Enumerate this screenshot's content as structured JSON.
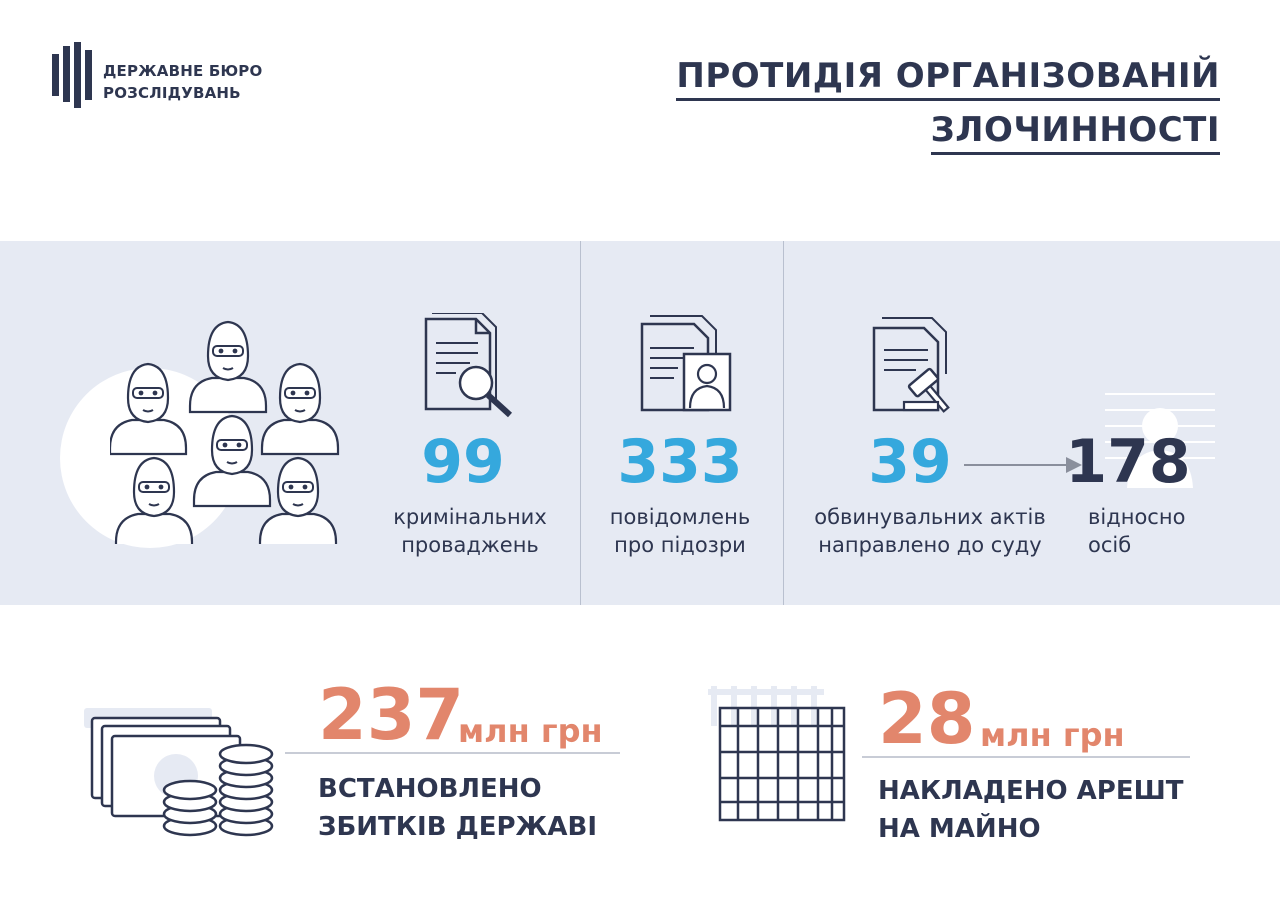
{
  "header": {
    "org_line1": "ДЕРЖАВНЕ БЮРО",
    "org_line2": "РОЗСЛІДУВАНЬ",
    "title_line1": "ПРОТИДІЯ ОРГАНІЗОВАНІЙ",
    "title_line2": "ЗЛОЧИННОСТІ"
  },
  "stats": {
    "cases": {
      "value": "99",
      "caption_line1": "кримінальних",
      "caption_line2": "проваджень"
    },
    "suspicions": {
      "value": "333",
      "caption_line1": "повідомлень",
      "caption_line2": "про підозри"
    },
    "indictments": {
      "value": "39",
      "caption_line1": "обвинувальних актів",
      "caption_line2": "направлено до суду"
    },
    "persons": {
      "value": "178",
      "caption_line1": "відносно",
      "caption_line2": "осіб"
    }
  },
  "bottom": {
    "damage": {
      "value": "237",
      "unit": "млн грн",
      "caption_line1": "ВСТАНОВЛЕНО",
      "caption_line2": "ЗБИТКІВ ДЕРЖАВІ"
    },
    "arrest": {
      "value": "28",
      "unit": "млн грн",
      "caption_line1": "НАКЛАДЕНО АРЕШТ",
      "caption_line2": "НА МАЙНО"
    }
  },
  "colors": {
    "dark": "#2e3650",
    "blue": "#35a8dd",
    "orange": "#e2866c",
    "band": "#e6eaf3"
  },
  "icons": [
    "dbr-logo-icon",
    "masked-group-icon",
    "document-search-icon",
    "suspicion-document-icon",
    "court-gavel-document-icon",
    "mugshot-person-icon",
    "money-coins-icon",
    "prison-bars-icon"
  ]
}
